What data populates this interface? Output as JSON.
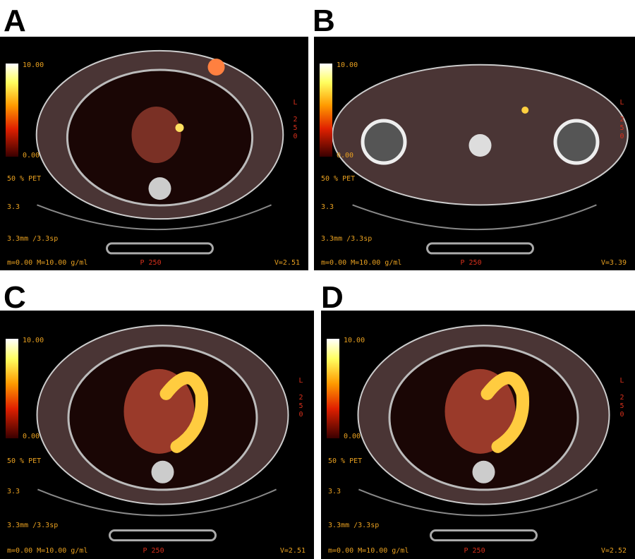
{
  "panels": [
    {
      "label": "A",
      "scale_max": "10.00",
      "scale_min": "0.00",
      "pet": "50 % PET",
      "slice": "3.3",
      "thickness": "3.3mm /3.3sp",
      "range": "m=0.00 M=10.00 g/ml",
      "position": "P 250",
      "value": "V=2.51",
      "side": "L 250"
    },
    {
      "label": "B",
      "scale_max": "10.00",
      "scale_min": "0.00",
      "pet": "50 % PET",
      "slice": "3.3",
      "thickness": "3.3mm /3.3sp",
      "range": "m=0.00 M=10.00 g/ml",
      "position": "P 250",
      "value": "V=3.39",
      "side": "L 250"
    },
    {
      "label": "C",
      "scale_max": "10.00",
      "scale_min": "0.00",
      "pet": "50 % PET",
      "slice": "3.3",
      "thickness": "3.3mm /3.3sp",
      "range": "m=0.00 M=10.00 g/ml",
      "position": "P 250",
      "value": "V=2.51",
      "side": "L 250"
    },
    {
      "label": "D",
      "scale_max": "10.00",
      "scale_min": "0.00",
      "pet": "50 % PET",
      "slice": "3.3",
      "thickness": "3.3mm /3.3sp",
      "range": "m=0.00 M=10.00 g/ml",
      "position": "P 250",
      "value": "V=2.52",
      "side": "L 250"
    }
  ]
}
